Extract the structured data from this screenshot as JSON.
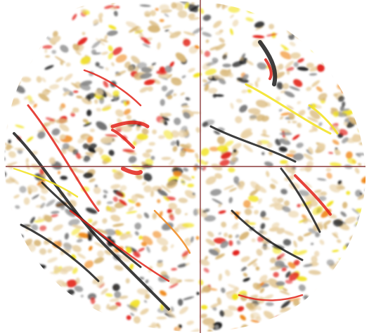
{
  "image": {
    "subject": "circular-seismic-time-slice",
    "palette": {
      "background": "#ffffff",
      "base_tan": "#d9b87a",
      "light_tan": "#ead3a8",
      "grey": "#8c8c8c",
      "dark": "#1c1c1c",
      "yellow": "#f2e21c",
      "orange": "#f08a1e",
      "red": "#e2231a",
      "crosshair": "#8b3a3a"
    },
    "crosshair_visible": true
  }
}
